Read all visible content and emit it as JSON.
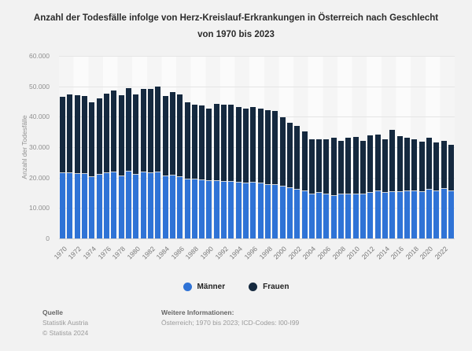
{
  "title": "Anzahl der Todesfälle infolge von Herz-Kreislauf-Erkrankungen in Österreich nach Geschlecht von 1970 bis 2023",
  "colors": {
    "maenner": "#2f73d6",
    "frauen": "#15293f",
    "background": "#f2f2f2"
  },
  "chart_data": {
    "type": "bar",
    "stacked": true,
    "x": [
      1970,
      1971,
      1972,
      1973,
      1974,
      1975,
      1976,
      1977,
      1978,
      1979,
      1980,
      1981,
      1982,
      1983,
      1984,
      1985,
      1986,
      1987,
      1988,
      1989,
      1990,
      1991,
      1992,
      1993,
      1994,
      1995,
      1996,
      1997,
      1998,
      1999,
      2000,
      2001,
      2002,
      2003,
      2004,
      2005,
      2006,
      2007,
      2008,
      2009,
      2010,
      2011,
      2012,
      2013,
      2014,
      2015,
      2016,
      2017,
      2018,
      2019,
      2020,
      2021,
      2022,
      2023
    ],
    "series": [
      {
        "name": "Männer",
        "color": "#2f73d6",
        "values": [
          21400,
          21400,
          21100,
          21100,
          20300,
          20900,
          21400,
          21600,
          20500,
          22000,
          20900,
          21600,
          21400,
          21700,
          20500,
          20700,
          20300,
          19400,
          19400,
          19200,
          18800,
          19000,
          18700,
          18500,
          18400,
          18100,
          18400,
          18100,
          17700,
          17500,
          17200,
          16600,
          16100,
          15500,
          14600,
          14900,
          14400,
          14000,
          14400,
          14600,
          14600,
          14400,
          14900,
          15500,
          14900,
          15300,
          15300,
          15500,
          15500,
          15300,
          16100,
          15500,
          16400,
          15500
        ]
      },
      {
        "name": "Frauen",
        "color": "#15293f",
        "values": [
          25100,
          26000,
          26000,
          25700,
          24500,
          25200,
          26300,
          26900,
          26500,
          27400,
          26500,
          27500,
          27700,
          28300,
          26300,
          27300,
          27100,
          25400,
          24600,
          24500,
          24000,
          25200,
          25300,
          25500,
          24900,
          24700,
          24900,
          24600,
          24500,
          24500,
          22700,
          21500,
          21000,
          19600,
          17900,
          17800,
          18100,
          19000,
          17800,
          18400,
          18800,
          17700,
          19000,
          18700,
          17800,
          20500,
          18300,
          17700,
          17000,
          16600,
          16900,
          16100,
          15700,
          15300
        ]
      }
    ],
    "title": "Anzahl der Todesfälle infolge von Herz-Kreislauf-Erkrankungen in Österreich nach Geschlecht von 1970 bis 2023",
    "xlabel": "",
    "ylabel": "Anzahl der Todesfälle",
    "ylim": [
      0,
      60000
    ],
    "yticks": [
      0,
      10000,
      20000,
      30000,
      40000,
      50000,
      60000
    ],
    "ytick_labels": [
      "0",
      "10.000",
      "20.000",
      "30.000",
      "40.000",
      "50.000",
      "60.000"
    ],
    "xtick_labels": [
      "1970",
      "1972",
      "1974",
      "1976",
      "1978",
      "1980",
      "1982",
      "1984",
      "1986",
      "1988",
      "1990",
      "1992",
      "1994",
      "1996",
      "1998",
      "2000",
      "2002",
      "2004",
      "2006",
      "2008",
      "2010",
      "2012",
      "2014",
      "2016",
      "2018",
      "2020",
      "2022"
    ],
    "grid": true,
    "legend_position": "bottom"
  },
  "legend": [
    {
      "label": "Männer",
      "color": "#2f73d6"
    },
    {
      "label": "Frauen",
      "color": "#15293f"
    }
  ],
  "footer": {
    "source_heading": "Quelle",
    "source_line1": "Statistik Austria",
    "source_line2": "© Statista 2024",
    "info_heading": "Weitere Informationen:",
    "info_text": "Österreich; 1970 bis 2023; ICD-Codes: I00-I99"
  }
}
